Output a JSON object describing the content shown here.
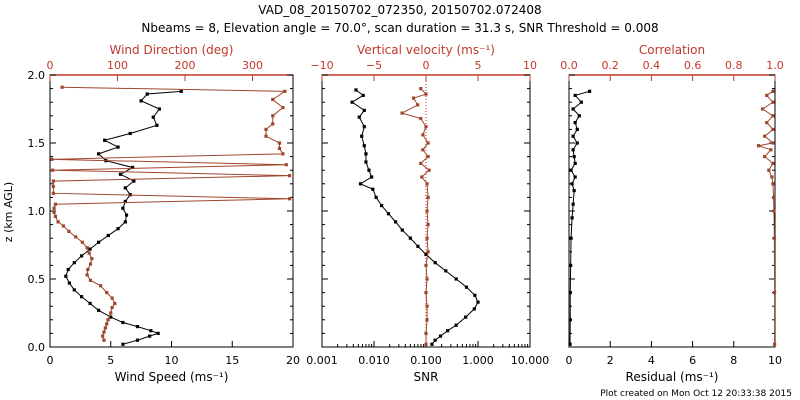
{
  "figure": {
    "title": "VAD_08_20150702_072350, 20150702.072408",
    "subtitle": "Nbeams = 8, Elevation angle = 70.0°, scan duration = 31.3 s, SNR Threshold = 0.008",
    "footer": "Plot created on Mon Oct 12 20:33:38 2015",
    "ylabel": "z (km AGL)",
    "colors": {
      "black": "#000000",
      "red": "#c0392b",
      "brown": "#a0462c"
    }
  },
  "chart_data": [
    {
      "type": "line",
      "panel": "wind",
      "xlabel": "Wind Speed (ms⁻¹)",
      "xlim": [
        0,
        20
      ],
      "xticks": [
        "0",
        "5",
        "10",
        "15",
        "20"
      ],
      "x2label": "Wind Direction (deg)",
      "x2lim": [
        0,
        360
      ],
      "x2ticks": [
        "0",
        "100",
        "200",
        "300"
      ],
      "ylabel": "z (km AGL)",
      "ylim": [
        0,
        2.0
      ],
      "yticks": [
        "0.0",
        "0.5",
        "1.0",
        "1.5",
        "2.0"
      ],
      "series": [
        {
          "name": "Wind Speed",
          "color": "#000000",
          "axis": "bottom",
          "points": [
            [
              6.0,
              0.02
            ],
            [
              7.2,
              0.05
            ],
            [
              8.2,
              0.08
            ],
            [
              8.9,
              0.1
            ],
            [
              8.3,
              0.12
            ],
            [
              7.2,
              0.15
            ],
            [
              6.0,
              0.18
            ],
            [
              5.0,
              0.22
            ],
            [
              4.0,
              0.27
            ],
            [
              3.3,
              0.32
            ],
            [
              2.6,
              0.37
            ],
            [
              2.0,
              0.42
            ],
            [
              1.6,
              0.47
            ],
            [
              1.3,
              0.52
            ],
            [
              1.5,
              0.57
            ],
            [
              2.0,
              0.62
            ],
            [
              2.6,
              0.67
            ],
            [
              3.3,
              0.72
            ],
            [
              4.0,
              0.77
            ],
            [
              4.8,
              0.82
            ],
            [
              5.6,
              0.87
            ],
            [
              6.2,
              0.92
            ],
            [
              6.3,
              0.97
            ],
            [
              6.0,
              1.02
            ],
            [
              6.2,
              1.07
            ],
            [
              6.6,
              1.12
            ],
            [
              6.2,
              1.17
            ],
            [
              6.9,
              1.22
            ],
            [
              5.8,
              1.27
            ],
            [
              6.8,
              1.32
            ],
            [
              4.6,
              1.37
            ],
            [
              4.0,
              1.42
            ],
            [
              5.6,
              1.47
            ],
            [
              4.5,
              1.52
            ],
            [
              6.6,
              1.57
            ],
            [
              8.8,
              1.63
            ],
            [
              8.5,
              1.69
            ],
            [
              9.0,
              1.75
            ],
            [
              7.5,
              1.81
            ],
            [
              8.0,
              1.86
            ],
            [
              10.8,
              1.88
            ]
          ]
        },
        {
          "name": "Wind Direction",
          "color": "#a0462c",
          "axis": "top",
          "points": [
            [
              80,
              0.05
            ],
            [
              78,
              0.08
            ],
            [
              80,
              0.11
            ],
            [
              82,
              0.14
            ],
            [
              84,
              0.17
            ],
            [
              86,
              0.2
            ],
            [
              90,
              0.25
            ],
            [
              92,
              0.29
            ],
            [
              96,
              0.32
            ],
            [
              92,
              0.36
            ],
            [
              84,
              0.4
            ],
            [
              75,
              0.45
            ],
            [
              60,
              0.49
            ],
            [
              55,
              0.53
            ],
            [
              56,
              0.57
            ],
            [
              60,
              0.61
            ],
            [
              62,
              0.65
            ],
            [
              58,
              0.69
            ],
            [
              55,
              0.73
            ],
            [
              48,
              0.77
            ],
            [
              38,
              0.81
            ],
            [
              28,
              0.85
            ],
            [
              20,
              0.89
            ],
            [
              12,
              0.92
            ],
            [
              8,
              0.96
            ],
            [
              6,
              0.99
            ],
            [
              6,
              1.02
            ],
            [
              8,
              1.05
            ],
            [
              355,
              1.09
            ],
            [
              5,
              1.13
            ],
            [
              5,
              1.18
            ],
            [
              5,
              1.22
            ],
            [
              355,
              1.26
            ],
            [
              4,
              1.3
            ],
            [
              350,
              1.34
            ],
            [
              3,
              1.38
            ],
            [
              345,
              1.42
            ],
            [
              340,
              1.46
            ],
            [
              340,
              1.5
            ],
            [
              320,
              1.55
            ],
            [
              320,
              1.6
            ],
            [
              330,
              1.64
            ],
            [
              330,
              1.7
            ],
            [
              345,
              1.76
            ],
            [
              330,
              1.82
            ],
            [
              348,
              1.88
            ],
            [
              18,
              1.91
            ]
          ]
        }
      ]
    },
    {
      "type": "line",
      "panel": "vertical-velocity",
      "xlabel": "SNR",
      "xscale": "log",
      "xlim": [
        0.001,
        10
      ],
      "xticks": [
        "0.001",
        "0.010",
        "0.100",
        "1.000",
        "10.000"
      ],
      "x2label": "Vertical velocity (ms⁻¹)",
      "x2lim": [
        -10,
        10
      ],
      "x2ticks": [
        "−10",
        "−5",
        "0",
        "5",
        "10"
      ],
      "ylim": [
        0,
        2.0
      ],
      "series": [
        {
          "name": "SNR",
          "color": "#000000",
          "axis": "bottom",
          "points": [
            [
              0.13,
              0.02
            ],
            [
              0.15,
              0.05
            ],
            [
              0.19,
              0.08
            ],
            [
              0.26,
              0.12
            ],
            [
              0.38,
              0.16
            ],
            [
              0.58,
              0.22
            ],
            [
              0.85,
              0.28
            ],
            [
              1.0,
              0.33
            ],
            [
              0.87,
              0.38
            ],
            [
              0.6,
              0.44
            ],
            [
              0.38,
              0.5
            ],
            [
              0.24,
              0.56
            ],
            [
              0.15,
              0.62
            ],
            [
              0.1,
              0.68
            ],
            [
              0.07,
              0.74
            ],
            [
              0.05,
              0.8
            ],
            [
              0.035,
              0.86
            ],
            [
              0.026,
              0.92
            ],
            [
              0.019,
              0.98
            ],
            [
              0.014,
              1.04
            ],
            [
              0.011,
              1.1
            ],
            [
              0.0095,
              1.16
            ],
            [
              0.0055,
              1.2
            ],
            [
              0.009,
              1.25
            ],
            [
              0.008,
              1.3
            ],
            [
              0.007,
              1.36
            ],
            [
              0.007,
              1.42
            ],
            [
              0.0065,
              1.48
            ],
            [
              0.0058,
              1.55
            ],
            [
              0.0065,
              1.62
            ],
            [
              0.0052,
              1.69
            ],
            [
              0.0065,
              1.74
            ],
            [
              0.0038,
              1.8
            ],
            [
              0.0062,
              1.85
            ],
            [
              0.0045,
              1.89
            ]
          ]
        },
        {
          "name": "Vertical velocity",
          "color": "#a0462c",
          "axis": "top",
          "points": [
            [
              0.0,
              0.02
            ],
            [
              0.0,
              0.1
            ],
            [
              0.1,
              0.2
            ],
            [
              0.1,
              0.3
            ],
            [
              0.0,
              0.4
            ],
            [
              0.1,
              0.5
            ],
            [
              0.0,
              0.6
            ],
            [
              0.2,
              0.7
            ],
            [
              0.1,
              0.8
            ],
            [
              0.2,
              0.9
            ],
            [
              0.1,
              1.0
            ],
            [
              0.2,
              1.1
            ],
            [
              0.1,
              1.2
            ],
            [
              -0.4,
              1.25
            ],
            [
              0.3,
              1.3
            ],
            [
              -0.5,
              1.35
            ],
            [
              0.2,
              1.4
            ],
            [
              -0.3,
              1.45
            ],
            [
              0.2,
              1.5
            ],
            [
              -0.3,
              1.56
            ],
            [
              0.0,
              1.62
            ],
            [
              -0.5,
              1.68
            ],
            [
              -2.3,
              1.72
            ],
            [
              -0.8,
              1.78
            ],
            [
              -1.2,
              1.83
            ],
            [
              0.0,
              1.86
            ],
            [
              -0.5,
              1.9
            ]
          ]
        }
      ]
    },
    {
      "type": "line",
      "panel": "correlation",
      "xlabel": "Residual (ms⁻¹)",
      "xlim": [
        0,
        10
      ],
      "xticks": [
        "0",
        "2",
        "4",
        "6",
        "8",
        "10"
      ],
      "x2label": "Correlation",
      "x2lim": [
        0,
        1
      ],
      "x2ticks": [
        "0.0",
        "0.2",
        "0.4",
        "0.6",
        "0.8",
        "1.0"
      ],
      "ylim": [
        0,
        2.0
      ],
      "series": [
        {
          "name": "Residual",
          "color": "#000000",
          "axis": "bottom",
          "points": [
            [
              0.05,
              0.02
            ],
            [
              0.06,
              0.2
            ],
            [
              0.06,
              0.4
            ],
            [
              0.08,
              0.6
            ],
            [
              0.1,
              0.8
            ],
            [
              0.15,
              0.95
            ],
            [
              0.2,
              1.05
            ],
            [
              0.25,
              1.15
            ],
            [
              0.15,
              1.2
            ],
            [
              0.3,
              1.25
            ],
            [
              0.1,
              1.3
            ],
            [
              0.3,
              1.35
            ],
            [
              0.25,
              1.4
            ],
            [
              0.2,
              1.45
            ],
            [
              0.4,
              1.5
            ],
            [
              0.2,
              1.55
            ],
            [
              0.4,
              1.6
            ],
            [
              0.3,
              1.65
            ],
            [
              0.5,
              1.7
            ],
            [
              0.2,
              1.75
            ],
            [
              0.6,
              1.8
            ],
            [
              0.3,
              1.85
            ],
            [
              1.0,
              1.88
            ]
          ]
        },
        {
          "name": "Correlation",
          "color": "#a0462c",
          "axis": "top",
          "points": [
            [
              0.998,
              0.02
            ],
            [
              0.998,
              0.4
            ],
            [
              0.997,
              0.8
            ],
            [
              0.995,
              1.0
            ],
            [
              0.993,
              1.1
            ],
            [
              0.99,
              1.2
            ],
            [
              0.985,
              1.25
            ],
            [
              0.97,
              1.3
            ],
            [
              0.99,
              1.35
            ],
            [
              0.95,
              1.4
            ],
            [
              0.98,
              1.45
            ],
            [
              0.92,
              1.48
            ],
            [
              0.99,
              1.5
            ],
            [
              0.95,
              1.55
            ],
            [
              0.99,
              1.6
            ],
            [
              0.96,
              1.65
            ],
            [
              0.99,
              1.7
            ],
            [
              0.94,
              1.75
            ],
            [
              0.99,
              1.8
            ],
            [
              0.96,
              1.85
            ],
            [
              0.99,
              1.88
            ]
          ]
        }
      ]
    }
  ]
}
